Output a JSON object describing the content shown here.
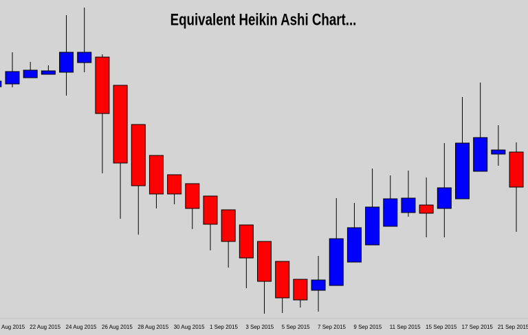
{
  "chart_data": {
    "type": "candlestick",
    "title": "Equivalent Heikin Ashi Chart...",
    "categories": [
      "Aug 2015",
      null,
      "22 Aug 2015",
      null,
      "24 Aug 2015",
      null,
      "26 Aug 2015",
      null,
      "28 Aug 2015",
      null,
      "30 Aug 2015",
      null,
      "1 Sep 2015",
      null,
      "3 Sep 2015",
      null,
      "5 Sep 2015",
      null,
      "7 Sep 2015",
      null,
      "9 Sep 2015",
      null,
      "11 Sep 2015",
      null,
      "15 Sep 2015",
      null,
      "17 Sep 2015",
      null,
      "21 Sep 2015",
      null
    ],
    "open": [
      336,
      340,
      349,
      354,
      357,
      371,
      379,
      338,
      281,
      236,
      208,
      195,
      177,
      157,
      135,
      111,
      82,
      56,
      40,
      47,
      81,
      106,
      133,
      153,
      164,
      159,
      173,
      213,
      238,
      241
    ],
    "high": [
      344,
      386,
      372,
      367,
      440,
      451,
      383,
      338,
      281,
      236,
      208,
      195,
      177,
      157,
      135,
      111,
      82,
      56,
      90,
      174,
      167,
      217,
      207,
      214,
      204,
      254,
      321,
      342,
      280,
      255
    ],
    "low": [
      336,
      335,
      349,
      354,
      323,
      357,
      210,
      144,
      121,
      159,
      165,
      129,
      98,
      73,
      43,
      6,
      7,
      15,
      9,
      47,
      81,
      106,
      133,
      147,
      117,
      117,
      173,
      213,
      221,
      125
    ],
    "close": [
      344,
      358,
      360,
      359,
      386,
      386,
      297,
      225,
      192,
      180,
      180,
      159,
      136,
      111,
      87,
      53,
      29,
      26,
      55,
      115,
      131,
      161,
      173,
      174,
      152,
      189,
      254,
      262,
      244,
      190
    ],
    "up_color": "#0000ff",
    "down_color": "#ff0000",
    "ylim": [
      0,
      462
    ]
  }
}
